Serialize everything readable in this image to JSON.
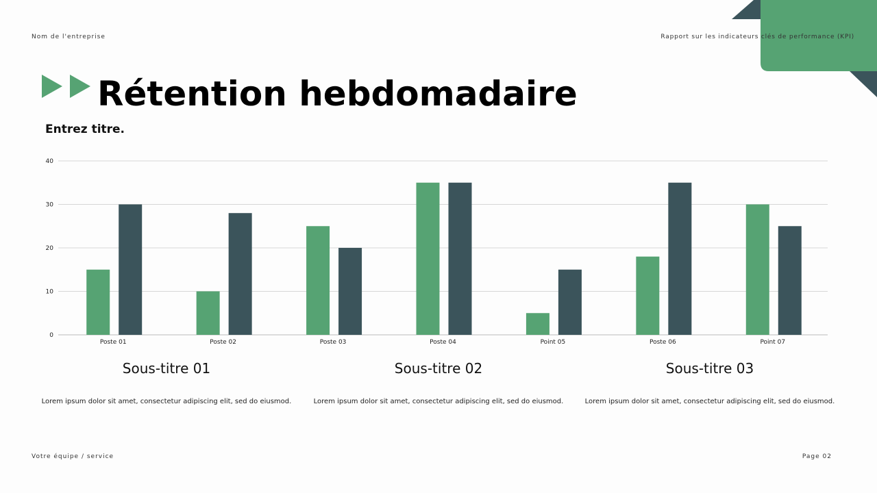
{
  "header": {
    "company": "Nom de l'entreprise",
    "report": "Rapport sur les indicateurs clés de performance (KPI)"
  },
  "title": "Rétention hebdomadaire",
  "subtitle": "Entrez titre.",
  "colors": {
    "green": "#56a373",
    "dark": "#3b545b"
  },
  "chart_data": {
    "type": "bar",
    "categories": [
      "Poste 01",
      "Poste 02",
      "Poste 03",
      "Poste 04",
      "Point 05",
      "Poste 06",
      "Point 07"
    ],
    "series": [
      {
        "values": [
          15,
          10,
          25,
          35,
          5,
          18,
          30
        ],
        "color": "#56a373"
      },
      {
        "values": [
          30,
          28,
          20,
          35,
          15,
          35,
          25
        ],
        "color": "#3b545b"
      }
    ],
    "ylim": [
      0,
      40
    ],
    "yticks": [
      0,
      10,
      20,
      30,
      40
    ],
    "grid": true
  },
  "sections": [
    {
      "title": "Sous-titre 01",
      "text": "Lorem ipsum dolor sit amet, consectetur adipiscing elit, sed do eiusmod."
    },
    {
      "title": "Sous-titre 02",
      "text": "Lorem ipsum dolor sit amet, consectetur adipiscing elit, sed do eiusmod."
    },
    {
      "title": "Sous-titre 03",
      "text": "Lorem ipsum dolor sit amet, consectetur adipiscing elit, sed do eiusmod."
    }
  ],
  "footer": {
    "team": "Votre équipe / service",
    "page": "Page 02"
  }
}
